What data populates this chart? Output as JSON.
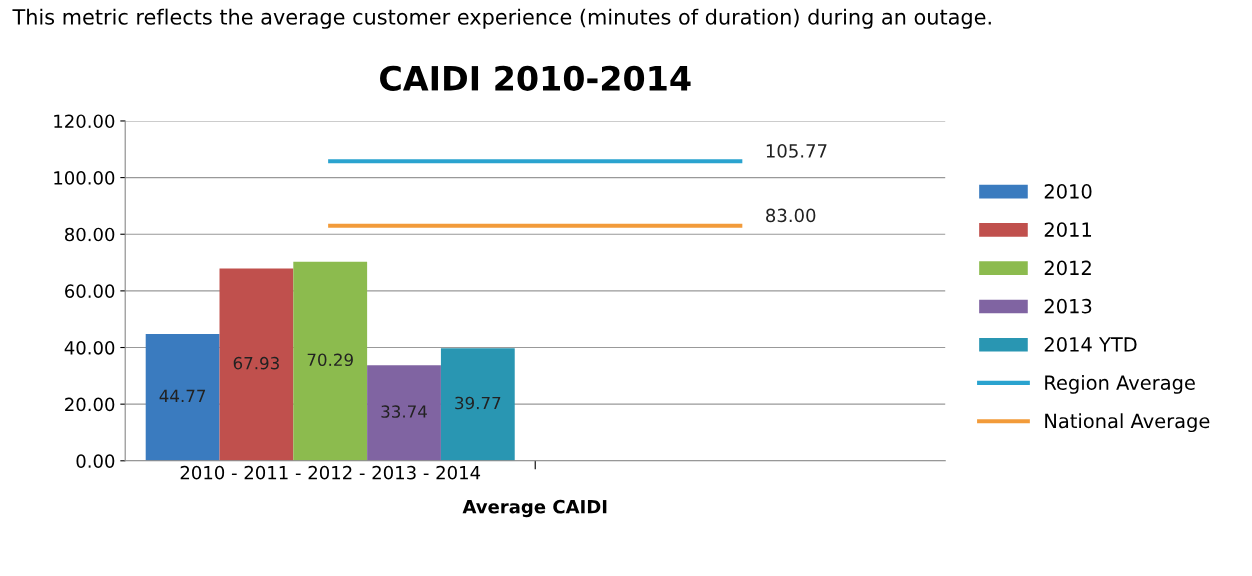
{
  "chart_data": {
    "type": "bar",
    "title": "CAIDI 2010-2014",
    "xlabel": "Average CAIDI",
    "annotations": [
      "This metric reflects the average customer experience (minutes of duration) during an outage."
    ],
    "categories": [
      "2010 - 2011 - 2012 - 2013 - 2014",
      null
    ],
    "series": [
      {
        "name": "2010",
        "color": "#3a7bbf",
        "values": [
          44.77,
          null
        ],
        "value_labels": [
          "44.77",
          null
        ]
      },
      {
        "name": "2011",
        "color": "#c0504d",
        "values": [
          67.93,
          null
        ],
        "value_labels": [
          "67.93",
          null
        ]
      },
      {
        "name": "2012",
        "color": "#8cbb4e",
        "values": [
          70.29,
          null
        ],
        "value_labels": [
          "70.29",
          null
        ]
      },
      {
        "name": "2013",
        "color": "#8064a2",
        "values": [
          33.74,
          null
        ],
        "value_labels": [
          "33.74",
          null
        ]
      },
      {
        "name": "2014 YTD",
        "color": "#2996b2",
        "values": [
          39.77,
          null
        ],
        "value_labels": [
          "39.77",
          null
        ]
      },
      {
        "name": "Region Average",
        "type": "line",
        "color": "#2aa3cf",
        "values": [
          105.77,
          105.77
        ],
        "value_labels": [
          null,
          "105.77"
        ]
      },
      {
        "name": "National Average",
        "type": "line",
        "color": "#f29b3a",
        "values": [
          83.0,
          83.0
        ],
        "value_labels": [
          null,
          "83.00"
        ]
      }
    ],
    "ylim": [
      0,
      120
    ],
    "yticks": [
      {
        "value": 0,
        "label": "0.00"
      },
      {
        "value": 20,
        "label": "20.00"
      },
      {
        "value": 40,
        "label": "40.00"
      },
      {
        "value": 60,
        "label": "60.00"
      },
      {
        "value": 80,
        "label": "80.00"
      },
      {
        "value": 100,
        "label": "100.00"
      },
      {
        "value": 120,
        "label": "120.00"
      }
    ],
    "grid": "y",
    "legend": "right"
  }
}
